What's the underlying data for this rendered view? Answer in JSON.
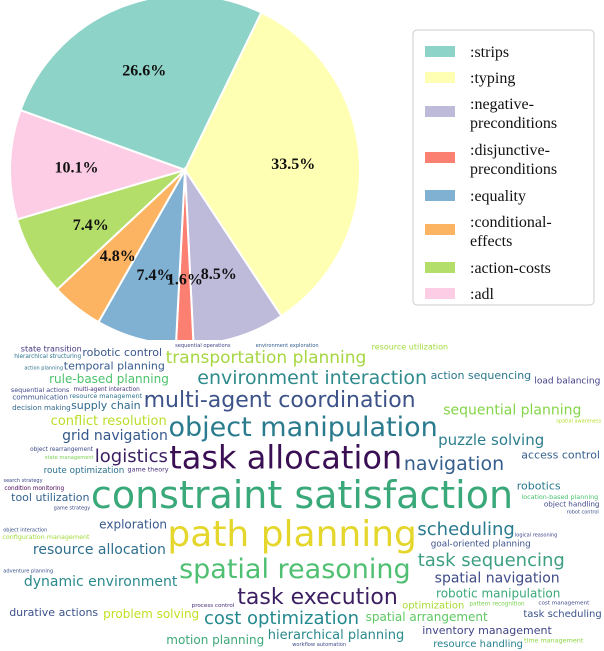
{
  "chart_data": [
    {
      "type": "pie",
      "title": "",
      "legend_position": "right",
      "slices": [
        {
          "label": ":strips",
          "value": 26.6,
          "display": "26.6%",
          "color": "#8dd3c7"
        },
        {
          "label": ":typing",
          "value": 33.5,
          "display": "33.5%",
          "color": "#ffffb3"
        },
        {
          "label": ":negative-preconditions",
          "legend_lines": [
            ":negative-",
            "preconditions"
          ],
          "value": 8.5,
          "display": "8.5%",
          "color": "#bebada"
        },
        {
          "label": ":disjunctive-preconditions",
          "legend_lines": [
            ":disjunctive-",
            "preconditions"
          ],
          "value": 1.6,
          "display": "1.6%",
          "color": "#fb8072"
        },
        {
          "label": ":equality",
          "value": 7.4,
          "display": "7.4%",
          "color": "#80b1d3"
        },
        {
          "label": ":conditional-effects",
          "legend_lines": [
            ":conditional-",
            "effects"
          ],
          "value": 4.8,
          "display": "4.8%",
          "color": "#fdb462"
        },
        {
          "label": ":action-costs",
          "value": 7.4,
          "display": "7.4%",
          "color": "#b3de69"
        },
        {
          "label": ":adl",
          "value": 10.1,
          "display": "10.1%",
          "color": "#fccde5"
        }
      ]
    },
    {
      "type": "wordcloud",
      "words": [
        {
          "text": "constraint satisfaction",
          "color": "#3aa97a",
          "size": 38
        },
        {
          "text": "path planning",
          "color": "#e4d62a",
          "size": 36
        },
        {
          "text": "task allocation",
          "color": "#3b0f54",
          "size": 32
        },
        {
          "text": "object manipulation",
          "color": "#2a7b8e",
          "size": 27
        },
        {
          "text": "spatial reasoning",
          "color": "#4fbf72",
          "size": 27
        },
        {
          "text": "multi-agent coordination",
          "color": "#3c5288",
          "size": 22
        },
        {
          "text": "task execution",
          "color": "#3b1f62",
          "size": 22
        },
        {
          "text": "environment interaction",
          "color": "#2e8a8c",
          "size": 19
        },
        {
          "text": "navigation",
          "color": "#355e8d",
          "size": 19
        },
        {
          "text": "scheduling",
          "color": "#2a7a8e",
          "size": 18
        },
        {
          "text": "task sequencing",
          "color": "#3d9f82",
          "size": 18
        },
        {
          "text": "logistics",
          "color": "#3b1f62",
          "size": 18
        },
        {
          "text": "cost optimization",
          "color": "#23898e",
          "size": 18
        },
        {
          "text": "transportation planning",
          "color": "#a6d742",
          "size": 17
        },
        {
          "text": "puzzle solving",
          "color": "#2c7e8e",
          "size": 15
        },
        {
          "text": "resource allocation",
          "color": "#2e6f8e",
          "size": 14
        },
        {
          "text": "spatial navigation",
          "color": "#3f4b88",
          "size": 14
        },
        {
          "text": "dynamic environment",
          "color": "#2a8a8c",
          "size": 14
        },
        {
          "text": "sequential planning",
          "color": "#86d549",
          "size": 14
        },
        {
          "text": "grid navigation",
          "color": "#34588c",
          "size": 14
        },
        {
          "text": "hierarchical planning",
          "color": "#2a8a8c",
          "size": 13
        },
        {
          "text": "conflict resolution",
          "color": "#b8de29",
          "size": 13
        },
        {
          "text": "spatial arrangement",
          "color": "#5ec962",
          "size": 12
        },
        {
          "text": "robotic manipulation",
          "color": "#3aa97a",
          "size": 12
        },
        {
          "text": "exploration",
          "color": "#38578c",
          "size": 12
        },
        {
          "text": "problem solving",
          "color": "#c2df23",
          "size": 12
        },
        {
          "text": "rule-based planning",
          "color": "#4cc26c",
          "size": 12
        },
        {
          "text": "motion planning",
          "color": "#3da87a",
          "size": 12
        },
        {
          "text": "action sequencing",
          "color": "#2a778e",
          "size": 11
        },
        {
          "text": "inventory management",
          "color": "#414487",
          "size": 11
        },
        {
          "text": "temporal planning",
          "color": "#365c8d",
          "size": 11
        },
        {
          "text": "tool utilization",
          "color": "#33628d",
          "size": 11
        },
        {
          "text": "robotics",
          "color": "#2a788e",
          "size": 11
        },
        {
          "text": "goal-oriented planning",
          "color": "#3b528b",
          "size": 11
        },
        {
          "text": "route optimization",
          "color": "#2c718e",
          "size": 11
        },
        {
          "text": "durative actions",
          "color": "#3b528b",
          "size": 11
        },
        {
          "text": "supply chain",
          "color": "#2f6b8e",
          "size": 11
        },
        {
          "text": "access control",
          "color": "#355f8d",
          "size": 11
        },
        {
          "text": "robotic control",
          "color": "#38578c",
          "size": 11
        },
        {
          "text": "resource handling",
          "color": "#26828e",
          "size": 10
        },
        {
          "text": "configuration management",
          "color": "#9fda3a",
          "size": 10
        },
        {
          "text": "location-based planning",
          "color": "#4ac16d",
          "size": 10
        },
        {
          "text": "resource management",
          "color": "#2c728e",
          "size": 10
        },
        {
          "text": "resource utilization",
          "color": "#a0da39",
          "size": 10
        },
        {
          "text": "task scheduling",
          "color": "#3a548c",
          "size": 10
        },
        {
          "text": "optimization",
          "color": "#a8db34",
          "size": 10
        },
        {
          "text": "object rearrangement",
          "color": "#3e4c8a",
          "size": 9
        },
        {
          "text": "dependency management",
          "color": "#472d7b",
          "size": 9
        },
        {
          "text": "load balancing",
          "color": "#424086",
          "size": 9
        },
        {
          "text": "object handling",
          "color": "#3f4889",
          "size": 9
        },
        {
          "text": "decision making",
          "color": "#31688e",
          "size": 9
        },
        {
          "text": "multi-agent interaction",
          "color": "#46327e",
          "size": 9
        },
        {
          "text": "hierarchical structuring",
          "color": "#2b758e",
          "size": 9
        },
        {
          "text": "condition monitoring",
          "color": "#440154",
          "size": 9
        },
        {
          "text": "pattern recognition",
          "color": "#7ad151",
          "size": 9
        },
        {
          "text": "time management",
          "color": "#8fd744",
          "size": 8
        },
        {
          "text": "communication",
          "color": "#3b528b",
          "size": 9
        },
        {
          "text": "state transition",
          "color": "#443a83",
          "size": 8
        },
        {
          "text": "sequential actions",
          "color": "#404688",
          "size": 8
        },
        {
          "text": "workflow automation",
          "color": "#3e4a89",
          "size": 8
        },
        {
          "text": "environment exploration",
          "color": "#35608d",
          "size": 8
        },
        {
          "text": "state management",
          "color": "#7ad151",
          "size": 8
        },
        {
          "text": "sequential operations",
          "color": "#404588",
          "size": 8
        },
        {
          "text": "game theory",
          "color": "#46307e",
          "size": 8
        },
        {
          "text": "adventure planning",
          "color": "#3b528b",
          "size": 8
        },
        {
          "text": "cost management",
          "color": "#3e4a89",
          "size": 7
        },
        {
          "text": "connectivity analysis",
          "color": "#482173",
          "size": 7
        },
        {
          "text": "process control",
          "color": "#472a7a",
          "size": 7
        },
        {
          "text": "capacity management",
          "color": "#3d9b83",
          "size": 7
        },
        {
          "text": "physical interaction",
          "color": "#355e8d",
          "size": 7
        },
        {
          "text": "logical reasoning",
          "color": "#3f4788",
          "size": 7
        },
        {
          "text": "efficiency maximization",
          "color": "#6ccd5a",
          "size": 7
        },
        {
          "text": "object interaction",
          "color": "#3b528b",
          "size": 7
        },
        {
          "text": "educational planning",
          "color": "#414287",
          "size": 7
        },
        {
          "text": "probabilistic planning",
          "color": "#482576",
          "size": 7
        },
        {
          "text": "adversarial planning",
          "color": "#7ad151",
          "size": 7
        },
        {
          "text": "spatial awareness",
          "color": "#b5de2b",
          "size": 7
        },
        {
          "text": "search strategy",
          "color": "#3e4989",
          "size": 7
        },
        {
          "text": "risk management",
          "color": "#482576",
          "size": 7
        },
        {
          "text": "state monitoring",
          "color": "#433e85",
          "size": 6
        },
        {
          "text": "location-based actions",
          "color": "#3e4a89",
          "size": 7
        },
        {
          "text": "non-deterministic planning",
          "color": "#433e85",
          "size": 6
        },
        {
          "text": "object relocation",
          "color": "#440154",
          "size": 7
        },
        {
          "text": "maintenance operations",
          "color": "#3b528b",
          "size": 7
        },
        {
          "text": "goal-directed behavior",
          "color": "#c2df23",
          "size": 6
        },
        {
          "text": "robot control",
          "color": "#3b528b",
          "size": 6
        },
        {
          "text": "action planning",
          "color": "#2e6e8e",
          "size": 7
        },
        {
          "text": "condition satisfaction",
          "color": "#46307e",
          "size": 7
        },
        {
          "text": "equipment management",
          "color": "#38588c",
          "size": 7
        },
        {
          "text": "game strategy",
          "color": "#3e4989",
          "size": 7
        },
        {
          "text": "assembly planning",
          "color": "#a0da39",
          "size": 7
        },
        {
          "text": "resource collection",
          "color": "#b5de2b",
          "size": 7
        },
        {
          "text": "environmental interaction",
          "color": "#2a788e",
          "size": 7
        },
        {
          "text": "autonomous systems",
          "color": "#bddf26",
          "size": 6
        },
        {
          "text": "manipulation planning",
          "color": "#482878",
          "size": 6
        },
        {
          "text": "process optimization",
          "color": "#a8db34",
          "size": 7
        },
        {
          "text": "state change",
          "color": "#482576",
          "size": 6
        },
        {
          "text": "condition-based actions",
          "color": "#a0da39",
          "size": 6
        },
        {
          "text": "graph traversal",
          "color": "#3e4a89",
          "size": 6
        }
      ]
    }
  ]
}
